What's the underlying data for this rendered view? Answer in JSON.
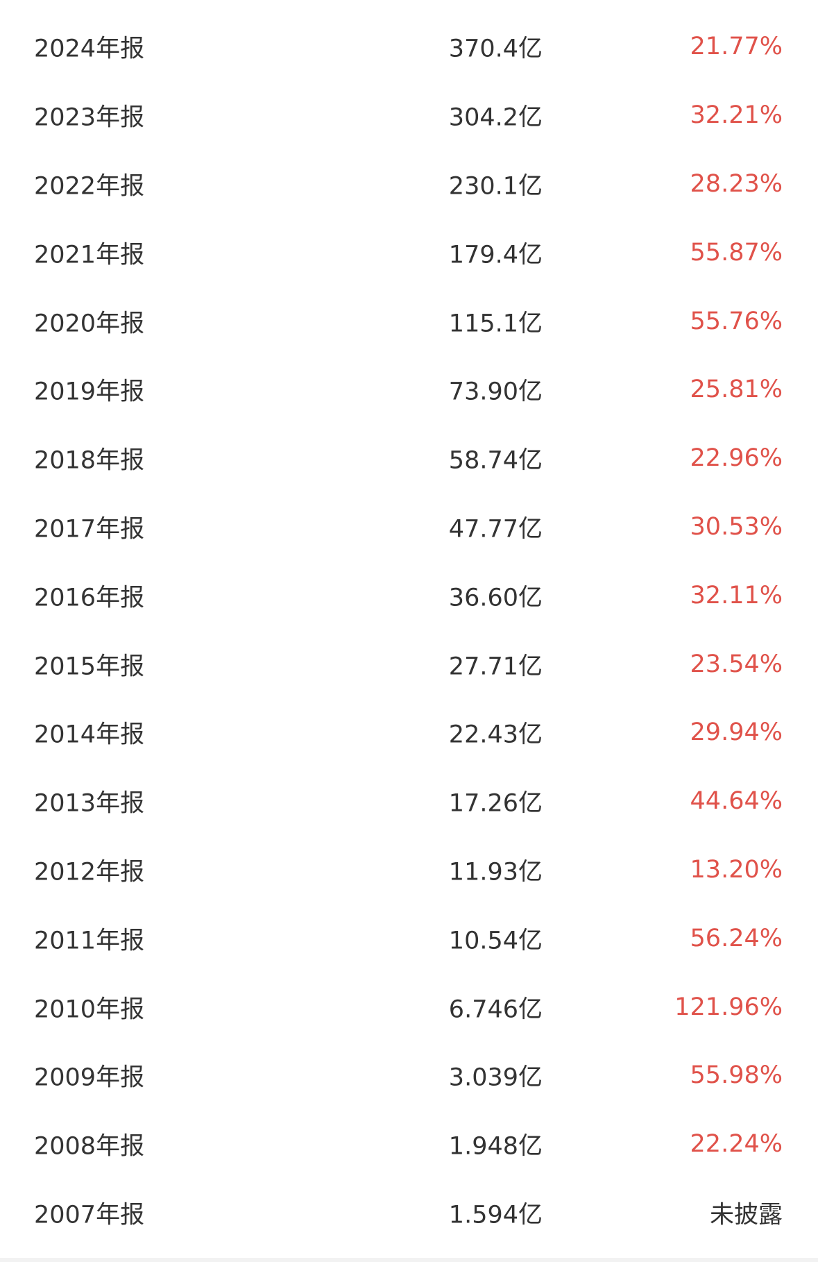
{
  "colors": {
    "positive": "#e0524a",
    "text": "#333333"
  },
  "rows": [
    {
      "period": "2024年报",
      "value": "370.4亿",
      "growth": "21.77%",
      "type": "red"
    },
    {
      "period": "2023年报",
      "value": "304.2亿",
      "growth": "32.21%",
      "type": "red"
    },
    {
      "period": "2022年报",
      "value": "230.1亿",
      "growth": "28.23%",
      "type": "red"
    },
    {
      "period": "2021年报",
      "value": "179.4亿",
      "growth": "55.87%",
      "type": "red"
    },
    {
      "period": "2020年报",
      "value": "115.1亿",
      "growth": "55.76%",
      "type": "red"
    },
    {
      "period": "2019年报",
      "value": "73.90亿",
      "growth": "25.81%",
      "type": "red"
    },
    {
      "period": "2018年报",
      "value": "58.74亿",
      "growth": "22.96%",
      "type": "red"
    },
    {
      "period": "2017年报",
      "value": "47.77亿",
      "growth": "30.53%",
      "type": "red"
    },
    {
      "period": "2016年报",
      "value": "36.60亿",
      "growth": "32.11%",
      "type": "red"
    },
    {
      "period": "2015年报",
      "value": "27.71亿",
      "growth": "23.54%",
      "type": "red"
    },
    {
      "period": "2014年报",
      "value": "22.43亿",
      "growth": "29.94%",
      "type": "red"
    },
    {
      "period": "2013年报",
      "value": "17.26亿",
      "growth": "44.64%",
      "type": "red"
    },
    {
      "period": "2012年报",
      "value": "11.93亿",
      "growth": "13.20%",
      "type": "red"
    },
    {
      "period": "2011年报",
      "value": "10.54亿",
      "growth": "56.24%",
      "type": "red"
    },
    {
      "period": "2010年报",
      "value": "6.746亿",
      "growth": "121.96%",
      "type": "red"
    },
    {
      "period": "2009年报",
      "value": "3.039亿",
      "growth": "55.98%",
      "type": "red"
    },
    {
      "period": "2008年报",
      "value": "1.948亿",
      "growth": "22.24%",
      "type": "red"
    },
    {
      "period": "2007年报",
      "value": "1.594亿",
      "growth": "未披露",
      "type": "plain"
    }
  ]
}
